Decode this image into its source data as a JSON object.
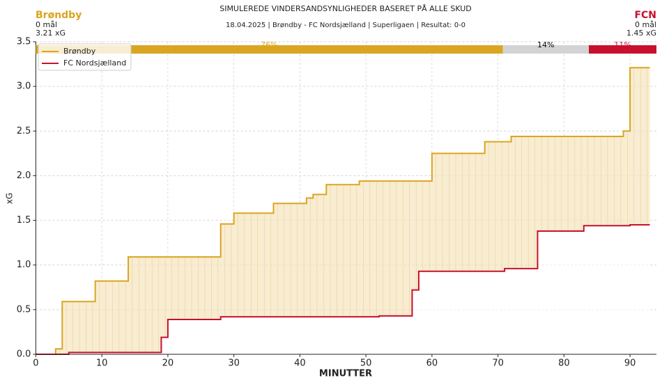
{
  "header": {
    "title": "SIMULEREDE VINDERSANDSYNLIGHEDER BASERET PÅ ALLE SKUD",
    "subtitle": "18.04.2025 | Brøndby - FC Nordsjælland | Superligaen | Resultat: 0-0",
    "home": {
      "name": "Brøndby",
      "goals": "0 mål",
      "xg": "3.21 xG",
      "color": "#DAA520"
    },
    "away": {
      "name": "FCN",
      "goals": "0 mål",
      "xg": "1.45 xG",
      "color": "#C8102E"
    }
  },
  "chart_data": {
    "type": "step",
    "xlabel": "MINUTTER",
    "ylabel": "xG",
    "xlim": [
      0,
      94
    ],
    "ylim": [
      0,
      3.5
    ],
    "xticks": [
      0,
      10,
      20,
      30,
      40,
      50,
      60,
      70,
      80,
      90
    ],
    "yticks": [
      {
        "value": 0,
        "label": "0.0"
      },
      0.5,
      {
        "value": 1,
        "label": "1.0"
      },
      1.5,
      {
        "value": 2,
        "label": "2.0"
      },
      2.5,
      {
        "value": 3,
        "label": "3.0"
      },
      3.5
    ],
    "grid": true,
    "legend": "upper left",
    "fill_between": true,
    "series": [
      {
        "name": "Brøndby",
        "color": "#DAA520",
        "x": [
          0,
          3,
          4,
          9,
          14,
          28,
          30,
          36,
          41,
          42,
          44,
          49,
          60,
          68,
          72,
          89,
          90,
          93
        ],
        "values": [
          0,
          0.06,
          0.59,
          0.82,
          1.09,
          1.46,
          1.58,
          1.69,
          1.75,
          1.79,
          1.9,
          1.94,
          2.25,
          2.38,
          2.44,
          2.5,
          3.21,
          3.21
        ]
      },
      {
        "name": "FC Nordsjælland",
        "color": "#C8102E",
        "x": [
          0,
          5,
          19,
          20,
          28,
          52,
          57,
          58,
          71,
          76,
          83,
          90,
          93
        ],
        "values": [
          0,
          0.02,
          0.19,
          0.39,
          0.42,
          0.43,
          0.72,
          0.93,
          0.96,
          1.38,
          1.44,
          1.45,
          1.45
        ]
      }
    ],
    "outcome_probabilities": {
      "values": [
        76,
        14,
        11
      ],
      "value_labels": [
        "76%",
        "14%",
        "11%"
      ],
      "colors": [
        "#DAA520",
        "#D3D3D3",
        "#C8102E"
      ],
      "label_colors": [
        "#DAA520",
        "#000000",
        "#C8102E"
      ]
    }
  }
}
